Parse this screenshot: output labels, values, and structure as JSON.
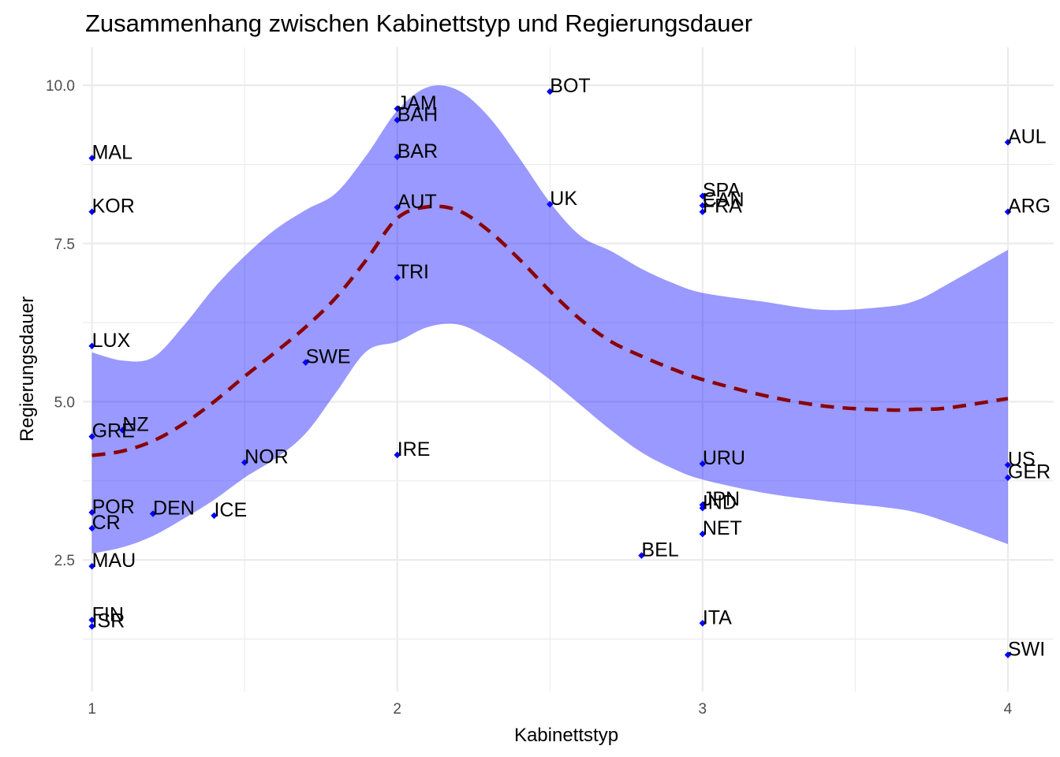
{
  "chart_data": {
    "type": "scatter",
    "title": "Zusammenhang zwischen Kabinettstyp und Regierungsdauer",
    "xlabel": "Kabinettstyp",
    "ylabel": "Regierungsdauer",
    "xlim": [
      0.97,
      4.15
    ],
    "ylim": [
      0.42,
      10.6
    ],
    "x_ticks": [
      1,
      2,
      3,
      4
    ],
    "x_tick_labels": [
      "1",
      "2",
      "3",
      "4"
    ],
    "y_ticks": [
      2.5,
      5.0,
      7.5,
      10.0
    ],
    "y_tick_labels": [
      "2.5",
      "5.0",
      "7.5",
      "10.0"
    ],
    "grid": true,
    "colors": {
      "points": "#0000ff",
      "smooth_line": "#8b0000",
      "ribbon": "#0000ff",
      "grid": "#ebebeb"
    },
    "points": [
      {
        "label": "MAL",
        "x": 1.0,
        "y": 8.85
      },
      {
        "label": "KOR",
        "x": 1.0,
        "y": 8.0
      },
      {
        "label": "LUX",
        "x": 1.0,
        "y": 5.88
      },
      {
        "label": "GRE",
        "x": 1.0,
        "y": 4.45
      },
      {
        "label": "NZ",
        "x": 1.1,
        "y": 4.55
      },
      {
        "label": "POR",
        "x": 1.0,
        "y": 3.25
      },
      {
        "label": "CR",
        "x": 1.0,
        "y": 3.0
      },
      {
        "label": "MAU",
        "x": 1.0,
        "y": 2.4
      },
      {
        "label": "FIN",
        "x": 1.0,
        "y": 1.55
      },
      {
        "label": "ISR",
        "x": 1.0,
        "y": 1.45
      },
      {
        "label": "DEN",
        "x": 1.2,
        "y": 3.23
      },
      {
        "label": "ICE",
        "x": 1.4,
        "y": 3.2
      },
      {
        "label": "NOR",
        "x": 1.5,
        "y": 4.04
      },
      {
        "label": "SWE",
        "x": 1.7,
        "y": 5.62
      },
      {
        "label": "JAM",
        "x": 2.0,
        "y": 9.63
      },
      {
        "label": "BAH",
        "x": 2.0,
        "y": 9.45
      },
      {
        "label": "BAR",
        "x": 2.0,
        "y": 8.87
      },
      {
        "label": "AUT",
        "x": 2.0,
        "y": 8.07
      },
      {
        "label": "TRI",
        "x": 2.0,
        "y": 6.96
      },
      {
        "label": "IRE",
        "x": 2.0,
        "y": 4.16
      },
      {
        "label": "BOT",
        "x": 2.5,
        "y": 9.9
      },
      {
        "label": "UK",
        "x": 2.5,
        "y": 8.12
      },
      {
        "label": "BEL",
        "x": 2.8,
        "y": 2.57
      },
      {
        "label": "SPA",
        "x": 3.0,
        "y": 8.25
      },
      {
        "label": "CAN",
        "x": 3.0,
        "y": 8.1
      },
      {
        "label": "FRA",
        "x": 3.0,
        "y": 8.0
      },
      {
        "label": "URU",
        "x": 3.0,
        "y": 4.02
      },
      {
        "label": "JPN",
        "x": 3.0,
        "y": 3.37
      },
      {
        "label": "IND",
        "x": 3.0,
        "y": 3.32
      },
      {
        "label": "NET",
        "x": 3.0,
        "y": 2.91
      },
      {
        "label": "ITA",
        "x": 3.0,
        "y": 1.5
      },
      {
        "label": "AUL",
        "x": 4.0,
        "y": 9.1
      },
      {
        "label": "ARG",
        "x": 4.0,
        "y": 8.0
      },
      {
        "label": "US",
        "x": 4.0,
        "y": 4.0
      },
      {
        "label": "GER",
        "x": 4.0,
        "y": 3.8
      },
      {
        "label": "SWI",
        "x": 4.0,
        "y": 1.0
      }
    ],
    "smooth": {
      "x": [
        1.0,
        1.1,
        1.2,
        1.3,
        1.4,
        1.5,
        1.6,
        1.7,
        1.8,
        1.9,
        2.0,
        2.1,
        2.2,
        2.3,
        2.4,
        2.5,
        2.6,
        2.7,
        2.8,
        2.9,
        3.0,
        3.2,
        3.4,
        3.6,
        3.7,
        3.8,
        4.0
      ],
      "y": [
        4.15,
        4.22,
        4.38,
        4.65,
        5.0,
        5.4,
        5.78,
        6.18,
        6.65,
        7.25,
        7.9,
        8.08,
        8.02,
        7.7,
        7.25,
        6.75,
        6.3,
        5.95,
        5.72,
        5.52,
        5.35,
        5.1,
        4.93,
        4.87,
        4.88,
        4.9,
        5.05
      ],
      "lower": [
        2.6,
        2.7,
        2.88,
        3.15,
        3.45,
        3.8,
        4.1,
        4.5,
        5.15,
        5.8,
        5.95,
        6.18,
        6.22,
        6.0,
        5.7,
        5.35,
        4.95,
        4.55,
        4.2,
        3.95,
        3.77,
        3.56,
        3.43,
        3.33,
        3.25,
        3.1,
        2.75
      ],
      "upper": [
        5.78,
        5.65,
        5.7,
        6.2,
        6.8,
        7.3,
        7.72,
        8.03,
        8.3,
        8.9,
        9.6,
        9.97,
        9.92,
        9.5,
        8.85,
        8.15,
        7.62,
        7.38,
        7.1,
        6.88,
        6.72,
        6.58,
        6.45,
        6.5,
        6.6,
        6.85,
        7.4
      ]
    }
  }
}
